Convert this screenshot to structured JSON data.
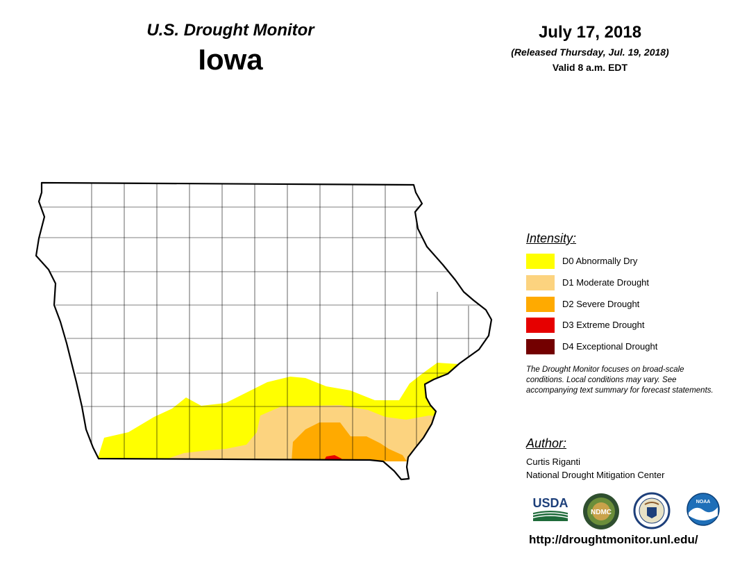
{
  "header": {
    "monitor_title": "U.S. Drought Monitor",
    "state": "Iowa",
    "date": "July 17, 2018",
    "released": "(Released Thursday, Jul. 19, 2018)",
    "valid": "Valid 8 a.m. EDT"
  },
  "legend": {
    "heading": "Intensity:",
    "items": [
      {
        "label": "D0 Abnormally Dry",
        "color": "#FFFF00"
      },
      {
        "label": "D1 Moderate Drought",
        "color": "#FCD37F"
      },
      {
        "label": "D2 Severe Drought",
        "color": "#FFAA00"
      },
      {
        "label": "D3 Extreme Drought",
        "color": "#E60000"
      },
      {
        "label": "D4 Exceptional Drought",
        "color": "#730000"
      }
    ]
  },
  "note": "The Drought Monitor focuses on broad-scale conditions. Local conditions may vary. See accompanying text summary for forecast statements.",
  "author": {
    "heading": "Author:",
    "name": "Curtis Riganti",
    "org": "National Drought Mitigation Center"
  },
  "logos": {
    "usda": "USDA",
    "ndmc": "NDMC",
    "noaa": "NOAA"
  },
  "url": "http://droughtmonitor.unl.edu/"
}
